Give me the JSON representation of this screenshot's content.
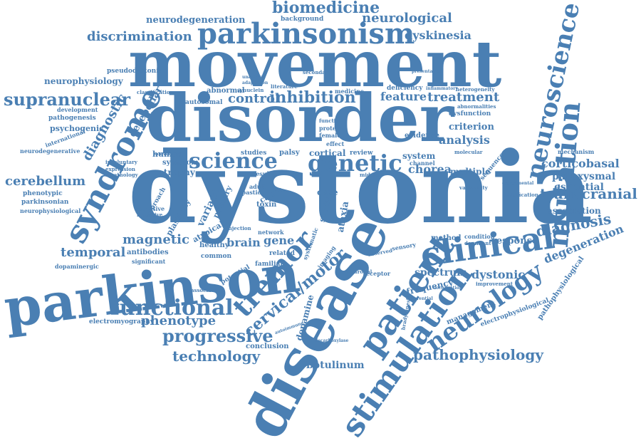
{
  "colors": {
    "word": "#4a7fb3",
    "background": "#ffffff"
  },
  "words": {
    "dystonia": "dystonia",
    "disease": "disease",
    "movement": "movement",
    "disorder": "disorder",
    "parkinson": "parkinson",
    "parkinsonism": "parkinsonism",
    "syndrome": "syndrome",
    "clinical": "clinical",
    "stimulation": "stimulation",
    "patient": "patient",
    "mutation": "mutation",
    "neuroscience": "neuroscience",
    "neurology": "neurology",
    "tremor": "tremor",
    "genetic": "genetic",
    "science": "science",
    "functional": "functional",
    "progressive": "progressive",
    "technology": "technology",
    "pathophysiology": "pathophysiology",
    "transcranial": "transcranial",
    "supranuclear": "supranuclear",
    "biomedicine": "biomedicine",
    "neurological": "neurological",
    "neurodegeneration": "neurodegeneration",
    "discrimination": "discrimination",
    "dyskinesia": "dyskinesia",
    "cerebellum": "cerebellum",
    "magnetic": "magnetic",
    "temporal": "temporal",
    "phenotype": "phenotype",
    "diagnosis": "diagnosis",
    "degeneration": "degeneration",
    "corticobasal": "corticobasal",
    "paroxysmal": "paroxysmal",
    "essential": "essential",
    "dystonic": "dystonic",
    "treatment": "treatment",
    "inhibition": "inhibition",
    "control": "control",
    "cervical": "cervical/motor",
    "diagnostic": "diagnostic",
    "cerebellar": "cerebellar",
    "botulinum": "botulinum",
    "brain": "brain",
    "gene": "gene",
    "chorea": "chorea",
    "analysis": "analysis",
    "criterion": "criterion",
    "feature": "feature",
    "neurophysiology": "neurophysiology",
    "psychogenic": "psychogenic",
    "pathogenesis": "pathogenesis",
    "association": "association",
    "response": "response",
    "spectrum": "spectrum",
    "frequency": "frequency",
    "management": "management",
    "electrophysiological": "electrophysiological",
    "pathophysiological": "pathophysiological",
    "electromyography": "electromyography",
    "conclusion": "conclusion",
    "dopamine": "dopamine",
    "system": "system",
    "multiple": "multiple",
    "evidence": "evidence",
    "human": "human",
    "atrophy": "atrophy",
    "symptom": "symptom",
    "autosomal": "autosomal",
    "abnormal": "abnormal",
    "phenotypic": "phenotypic",
    "parkinsonian": "parkinsonian",
    "neurophysiological": "neurophysiological",
    "neurodegenerative": "neurodegenerative",
    "international": "international",
    "development": "development",
    "classification": "classification",
    "pseudodystonia": "pseudodystonia",
    "background": "background",
    "deficiency": "deficiency",
    "medicine": "medicine",
    "syncuein": "synuclein",
    "literature": "literature",
    "secondary": "secondary",
    "dysfunction": "dysfunction",
    "abnormalities": "abnormalities",
    "heterogeneity": "heterogeneity",
    "inflammatory": "inflammatory",
    "mechanism": "mechanism",
    "calcification": "calcification",
    "variability": "variability",
    "sequence": "sequence",
    "channel": "channel",
    "review": "review",
    "cortical": "cortical",
    "palsy": "palsy",
    "studies": "studies",
    "female": "female",
    "protein": "protein",
    "function": "function",
    "effect": "effect",
    "adult": "adult",
    "toxin": "toxin",
    "cause": "cause",
    "spastic": "spastic",
    "case": "case",
    "study": "study",
    "ataxia": "ataxia",
    "variant": "variant",
    "primary": "primary",
    "approach": "approach",
    "plasticity": "plasticity",
    "atypical": "atypical",
    "cognitive": "cognitive",
    "receptive": "receptive",
    "injection": "injection",
    "healthy": "healthy",
    "common": "common",
    "antibodies": "antibodies",
    "significant": "significant",
    "dopaminergic": "dopaminergic",
    "potential": "potential",
    "familial": "familial",
    "related": "related",
    "imaging": "imaging",
    "method": "method",
    "condition": "condition",
    "dominant": "dominant",
    "sensory": "sensory",
    "network": "network",
    "result": "result",
    "associated": "associated",
    "neuronal": "neuronal",
    "receptor": "receptor",
    "improvement": "improvement",
    "involuntary": "involuntary",
    "expression": "expression",
    "pathology": "pathology",
    "conversion": "conversion",
    "adaptation": "adaptation",
    "molecular": "molecular",
    "experimental": "experimental",
    "differential": "differential",
    "observed": "observed",
    "middle": "middle",
    "decarboxylase": "decarboxylase",
    "autoimmune": "autoimmune",
    "systematic": "systematic",
    "presentation": "presentation",
    "localization": "localization",
    "unaware": "unaware",
    "bradykinesia": "bradykinesia"
  }
}
